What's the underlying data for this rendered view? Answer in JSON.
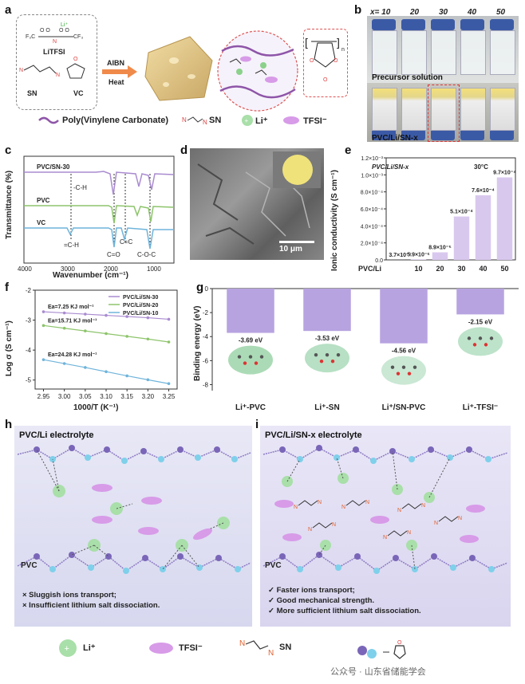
{
  "panel_a": {
    "label": "a",
    "salt_name": "LiTFSI",
    "li_plus": "Li⁺",
    "sn_label": "SN",
    "vc_label": "VC",
    "initiator": "AIBN",
    "condition": "Heat",
    "legend_polymer": "Poly(Vinylene Carbonate)",
    "legend_sn": "SN",
    "legend_li": "Li⁺",
    "legend_tfsi": "TFSI⁻"
  },
  "panel_b": {
    "label": "b",
    "x_values": [
      "x= 10",
      "20",
      "30",
      "40",
      "50"
    ],
    "precursor_label": "Precursor solution",
    "gel_label": "PVC/Li/SN-x"
  },
  "panel_c": {
    "label": "c",
    "ylabel": "Transmittance (%)",
    "xlabel": "Wavenumber (cm⁻¹)",
    "xticks": [
      "4000",
      "3000",
      "2000",
      "1000"
    ],
    "series": [
      "PVC/SN-30",
      "PVC",
      "VC"
    ],
    "annotations": [
      "-C-H",
      "=C-H",
      "C=O",
      "C=C",
      "C-O-C"
    ],
    "colors": {
      "pvc_sn": "#a98bd0",
      "pvc": "#8dc46b",
      "vc": "#6fb4db"
    }
  },
  "panel_d": {
    "label": "d",
    "scale_bar": "10 μm"
  },
  "panel_e": {
    "label": "e",
    "chart_data": {
      "type": "bar",
      "title": "PVC/Li/SN-x",
      "temperature": "30°C",
      "ylabel": "Ionic conductivity (S cm⁻¹)",
      "categories": [
        "PVC/Li",
        "10",
        "20",
        "30",
        "40",
        "50"
      ],
      "values": [
        3.7e-07,
        5.9e-06,
        8.9e-05,
        0.00051,
        0.00076,
        0.00097
      ],
      "value_labels": [
        "3.7×10⁻⁷",
        "5.9×10⁻⁶",
        "8.9×10⁻⁵",
        "5.1×10⁻⁴",
        "7.6×10⁻⁴",
        "9.7×10⁻⁴"
      ],
      "ylim": [
        0,
        0.0012
      ],
      "yticks": [
        "0.0",
        "2.0×10⁻⁴",
        "4.0×10⁻⁴",
        "6.0×10⁻⁴",
        "8.0×10⁻⁴",
        "1.0×10⁻³",
        "1.2×10⁻³"
      ],
      "bar_color": "#d9c8ee"
    }
  },
  "panel_f": {
    "label": "f",
    "chart_data": {
      "type": "scatter",
      "xlabel": "1000/T (K⁻¹)",
      "ylabel": "Log σ (S cm⁻¹)",
      "xlim": [
        2.93,
        3.27
      ],
      "ylim": [
        -5.3,
        -2.0
      ],
      "xticks": [
        "2.95",
        "3.00",
        "3.05",
        "3.10",
        "3.15",
        "3.20",
        "3.25"
      ],
      "yticks": [
        "-2",
        "-3",
        "-4",
        "-5"
      ],
      "x": [
        2.95,
        3.0,
        3.05,
        3.1,
        3.15,
        3.2,
        3.25
      ],
      "series": [
        {
          "name": "PVC/Li/SN-30",
          "color": "#a98bd0",
          "ea": "Ea=7.25 KJ mol⁻¹",
          "values": [
            -2.72,
            -2.76,
            -2.8,
            -2.84,
            -2.88,
            -2.92,
            -2.97
          ]
        },
        {
          "name": "PVC/Li/SN-20",
          "color": "#8dc46b",
          "ea": "Ea=15.71 KJ mol⁻¹",
          "values": [
            -3.18,
            -3.27,
            -3.36,
            -3.45,
            -3.54,
            -3.63,
            -3.73
          ]
        },
        {
          "name": "PVC/Li/SN-10",
          "color": "#6fb4db",
          "ea": "Ea=24.28 KJ mol⁻¹",
          "values": [
            -4.32,
            -4.45,
            -4.58,
            -4.72,
            -4.86,
            -4.99,
            -5.12
          ]
        }
      ]
    }
  },
  "panel_g": {
    "label": "g",
    "chart_data": {
      "type": "bar",
      "ylabel": "Binding energy (eV)",
      "yticks": [
        "0",
        "-2",
        "-4",
        "-6",
        "-8"
      ],
      "ylim": [
        -8.5,
        0
      ],
      "categories": [
        "Li⁺-PVC",
        "Li⁺-SN",
        "Li⁺/SN-PVC",
        "Li⁺-TFSI⁻"
      ],
      "values": [
        -3.69,
        -3.53,
        -4.56,
        -2.15
      ],
      "value_labels": [
        "-3.69 eV",
        "-3.53 eV",
        "-4.56 eV",
        "-2.15 eV"
      ],
      "bar_color": "#b7a3e0"
    }
  },
  "panel_h": {
    "label": "h",
    "title": "PVC/Li electrolyte",
    "pvc_label": "PVC",
    "notes": [
      "× Sluggish ions transport;",
      "× Insufficient lithium salt dissociation."
    ]
  },
  "panel_i": {
    "label": "i",
    "title": "PVC/Li/SN-x electrolyte",
    "pvc_label": "PVC",
    "notes": [
      "✓ Faster ions transport;",
      "✓ Good mechanical strength.",
      "✓ More sufficient lithium salt dissociation."
    ]
  },
  "bottom_legend": {
    "li": "Li⁺",
    "tfsi": "TFSI⁻",
    "sn": "SN",
    "watermark": "公众号 · 山东省储能学会"
  }
}
